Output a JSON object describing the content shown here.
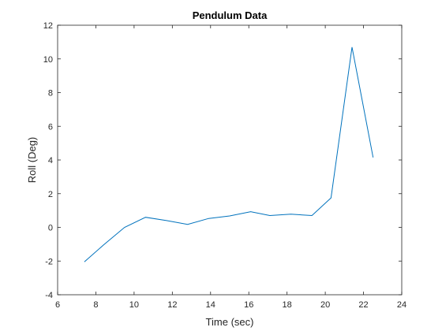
{
  "chart_data": {
    "type": "line",
    "title": "Pendulum Data",
    "xlabel": "Time (sec)",
    "ylabel": "Roll (Deg)",
    "xlim": [
      6,
      24
    ],
    "ylim": [
      -4,
      12
    ],
    "xticks": [
      6,
      8,
      10,
      12,
      14,
      16,
      18,
      20,
      22,
      24
    ],
    "yticks": [
      -4,
      -2,
      0,
      2,
      4,
      6,
      8,
      10,
      12
    ],
    "grid": false,
    "series": [
      {
        "color": "#0072bd",
        "x": [
          7.4,
          8.4,
          9.5,
          10.6,
          11.7,
          12.8,
          13.9,
          15.0,
          16.1,
          17.1,
          18.2,
          19.3,
          20.3,
          21.4,
          22.5
        ],
        "y": [
          -2.05,
          -1.05,
          0.0,
          0.6,
          0.4,
          0.18,
          0.53,
          0.68,
          0.93,
          0.7,
          0.78,
          0.7,
          1.75,
          10.7,
          4.15
        ]
      }
    ]
  }
}
